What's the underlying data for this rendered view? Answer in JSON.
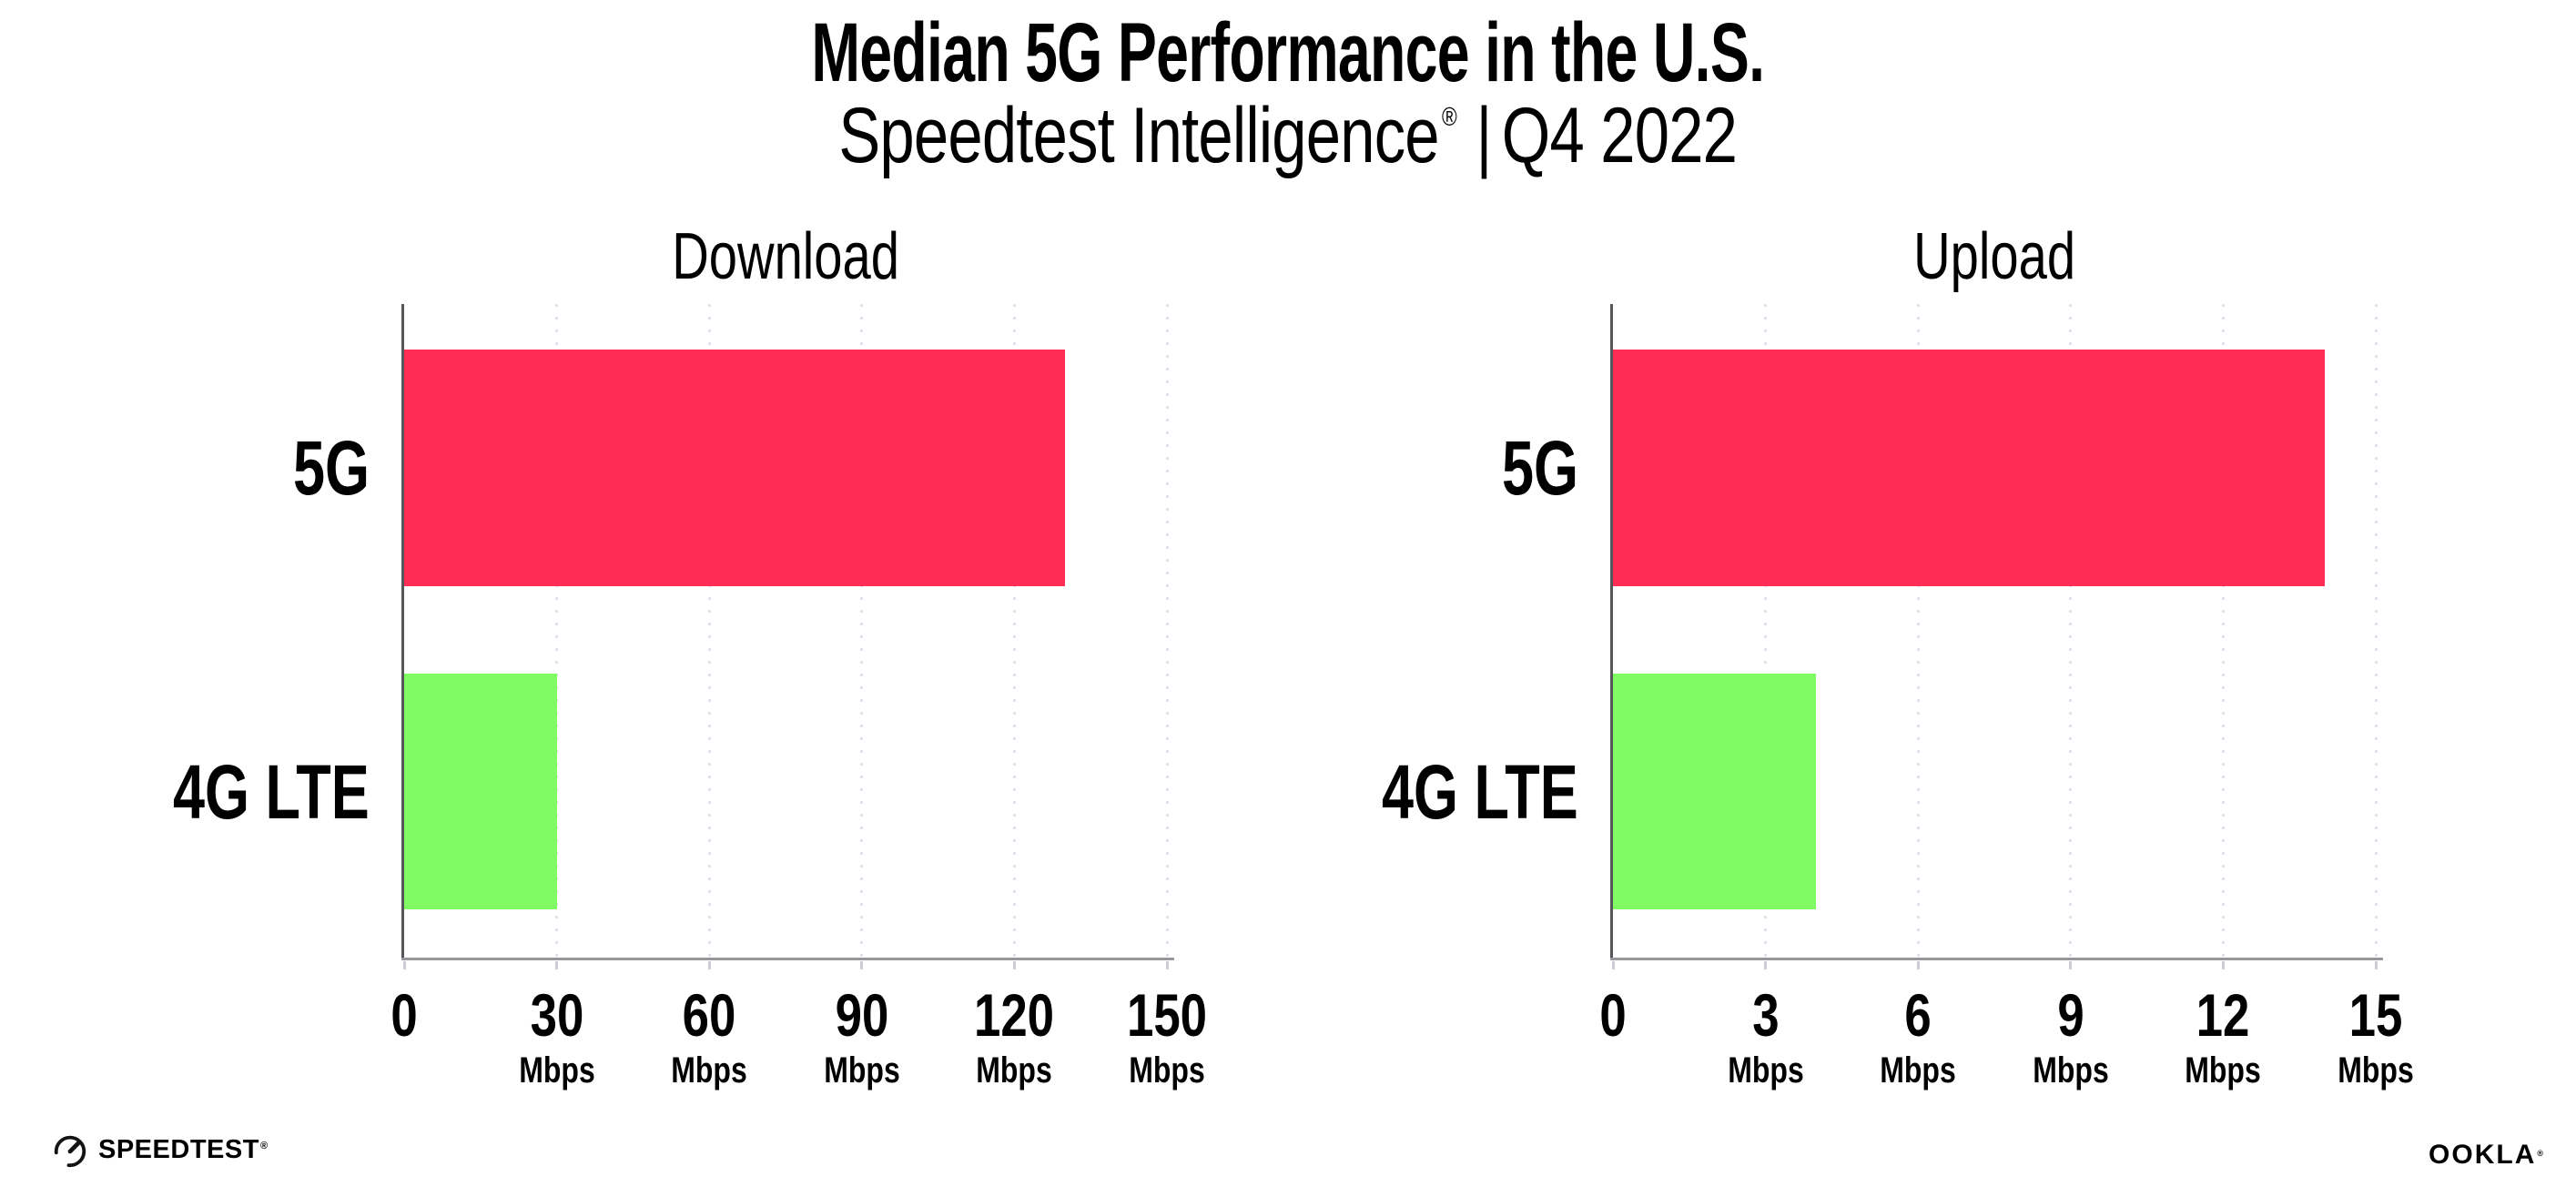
{
  "page": {
    "title": "Median 5G Performance in the U.S.",
    "subtitle": {
      "brand": "Speedtest Intelligence",
      "registered": "®",
      "separator": "|",
      "period": "Q4 2022"
    }
  },
  "chart_data": [
    {
      "type": "bar",
      "orientation": "horizontal",
      "title": "Download",
      "categories": [
        "5G",
        "4G LTE"
      ],
      "values": [
        130,
        30
      ],
      "unit": "Mbps",
      "xlim": [
        0,
        150
      ],
      "xticks": [
        0,
        30,
        60,
        90,
        120,
        150
      ],
      "bar_colors": [
        "#FF2D55",
        "#80FB64"
      ],
      "grid": "dotted-vertical-light",
      "legend": "none"
    },
    {
      "type": "bar",
      "orientation": "horizontal",
      "title": "Upload",
      "categories": [
        "5G",
        "4G LTE"
      ],
      "values": [
        14,
        4
      ],
      "unit": "Mbps",
      "xlim": [
        0,
        15
      ],
      "xticks": [
        0,
        3,
        6,
        9,
        12,
        15
      ],
      "bar_colors": [
        "#FF2D55",
        "#80FB64"
      ],
      "grid": "dotted-vertical-light",
      "legend": "none"
    }
  ],
  "footer": {
    "speedtest": {
      "label": "SPEEDTEST",
      "registered": "®"
    },
    "ookla": {
      "label": "OOKLA",
      "registered": "®"
    }
  },
  "colors": {
    "bar_5g": "#FF2D55",
    "bar_4g_lte": "#80FB64",
    "gridline": "#E0E1EC",
    "x_axis_line": "#97979B",
    "y_axis_line": "#55565A",
    "text": "#000000",
    "background": "#FFFFFF"
  }
}
